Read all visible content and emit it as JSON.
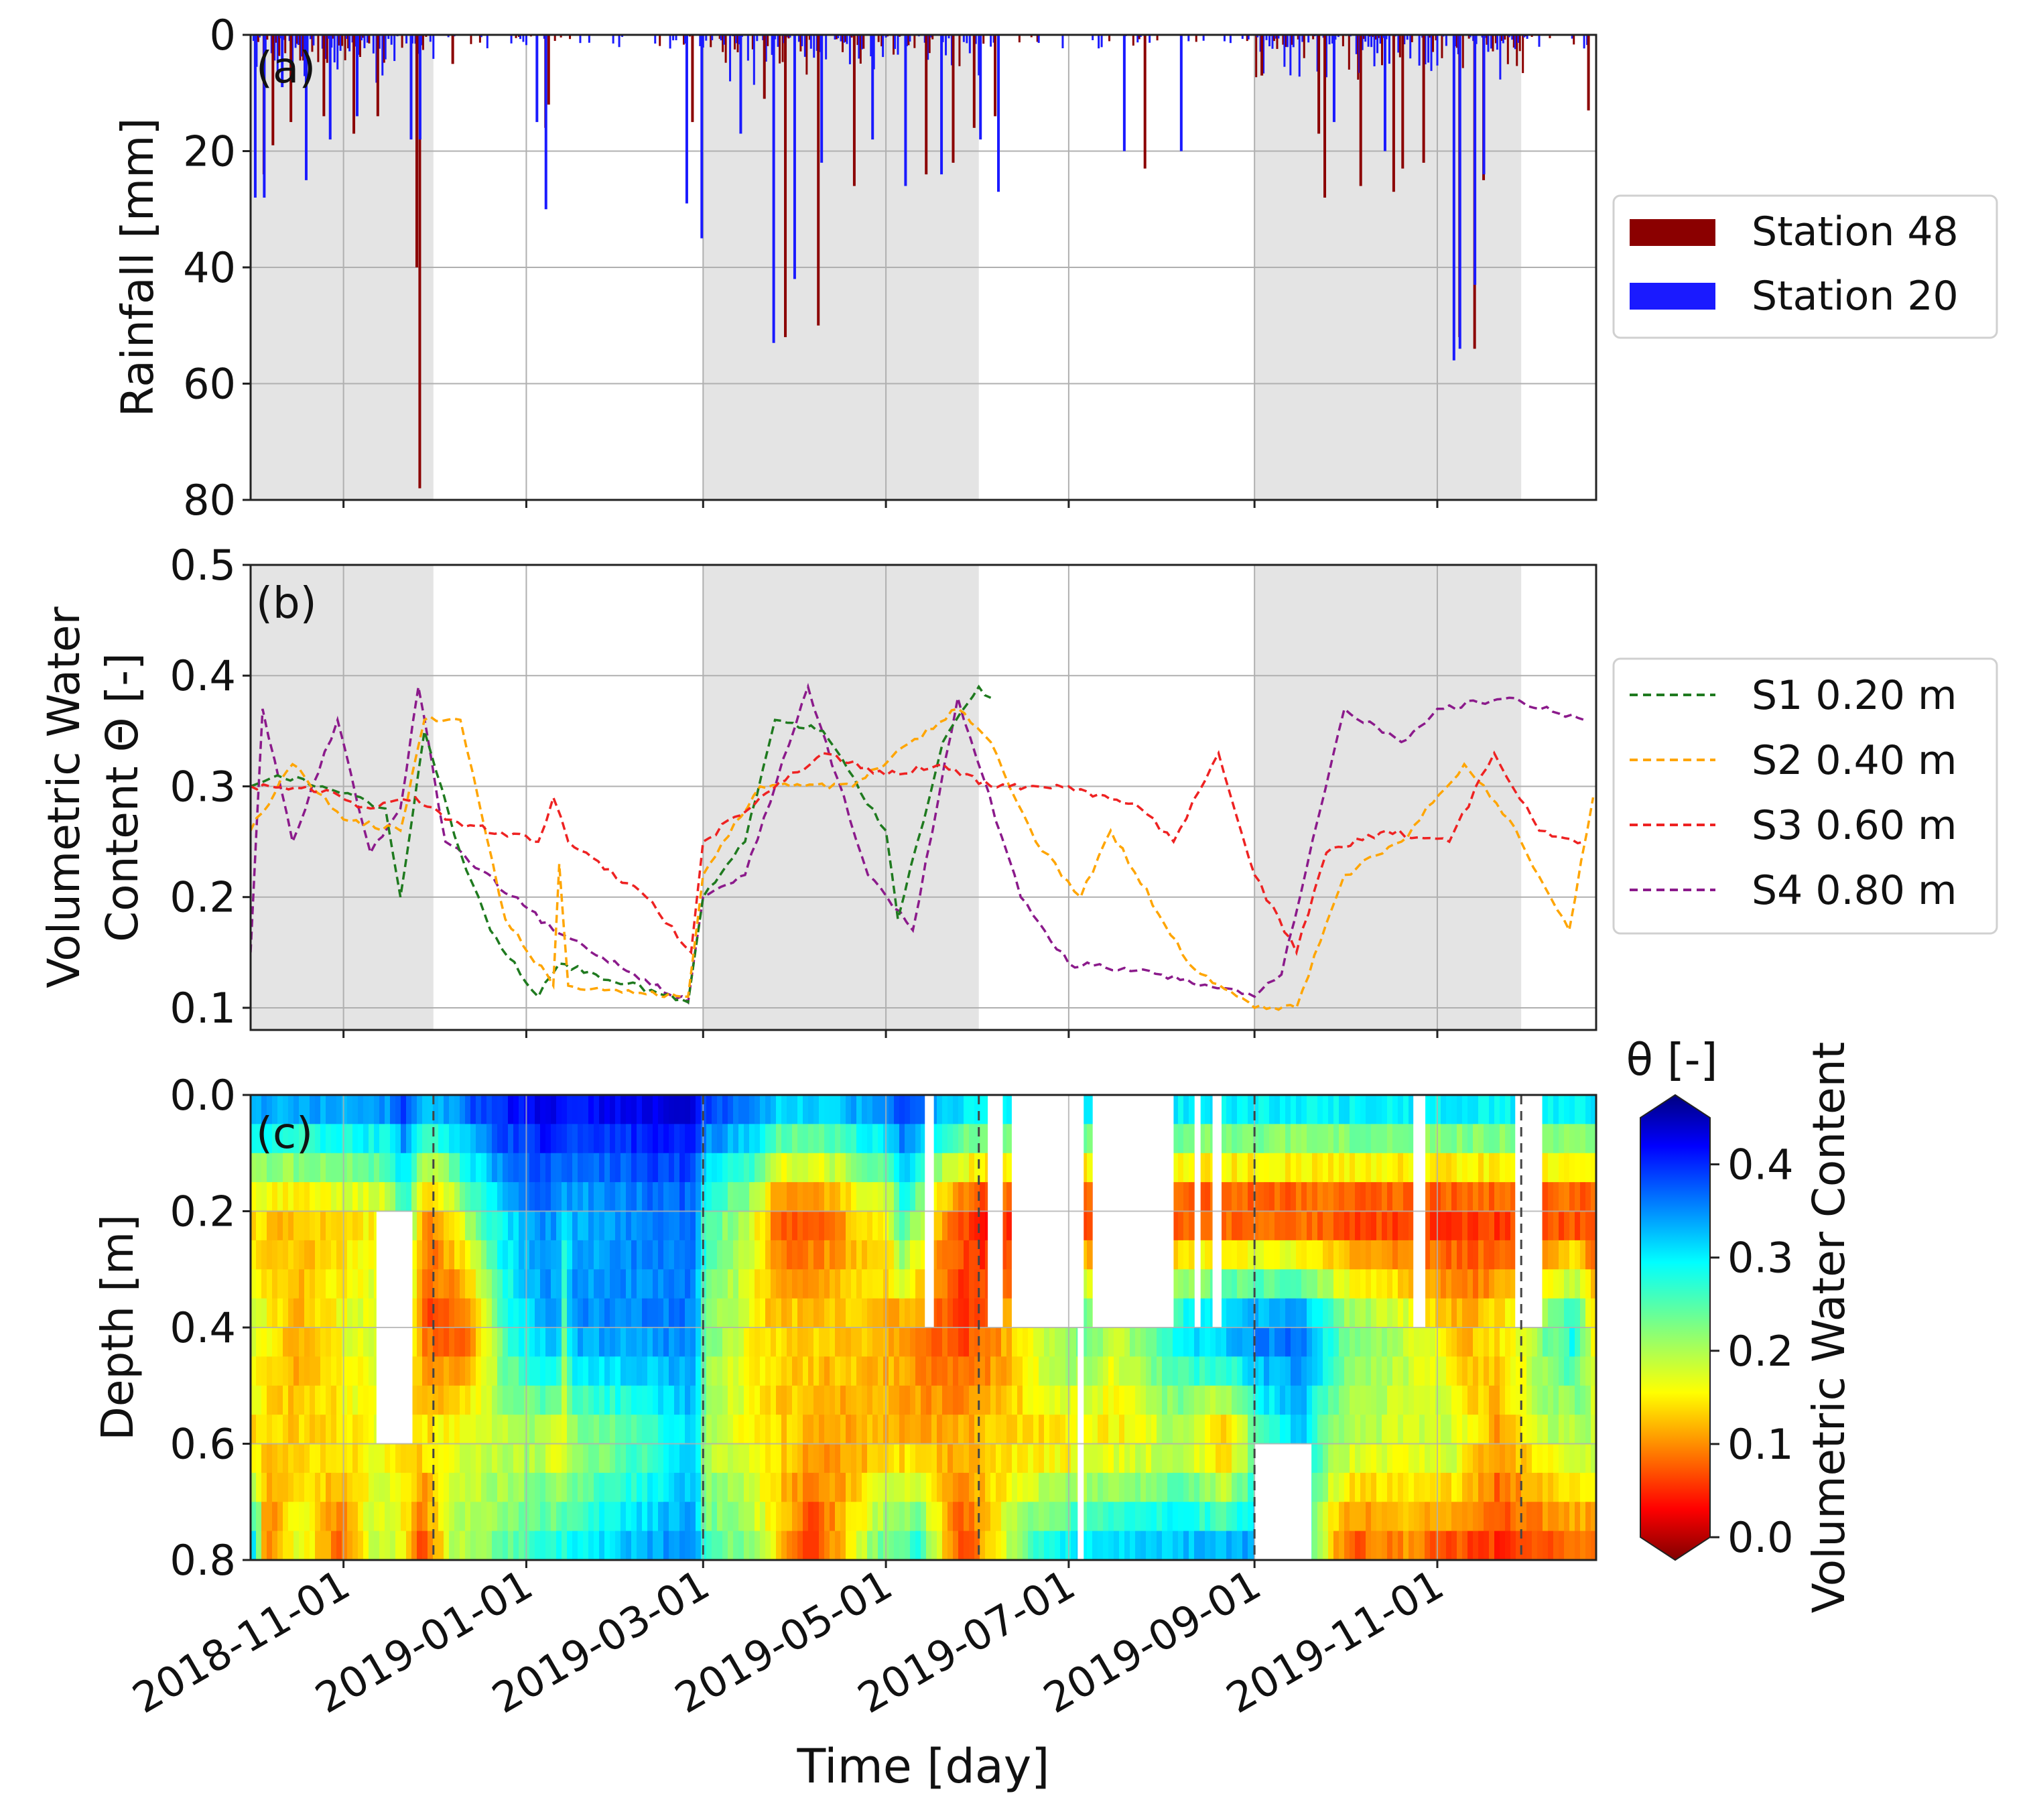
{
  "chart_data": [
    {
      "panel": "(a)",
      "type": "bar",
      "ylabel": "Rainfall [mm]",
      "ylim": [
        80,
        0
      ],
      "yticks": [
        0,
        20,
        40,
        60,
        80
      ],
      "xlim": [
        "2018-10-01",
        "2019-12-24"
      ],
      "x_ticks": [
        "2018-11-01",
        "2019-01-01",
        "2019-03-01",
        "2019-05-01",
        "2019-07-01",
        "2019-09-01",
        "2019-11-01"
      ],
      "shaded_periods": [
        [
          "2018-10-01",
          "2018-12-01"
        ],
        [
          "2019-03-01",
          "2019-06-01"
        ],
        [
          "2019-09-01",
          "2019-11-29"
        ]
      ],
      "legend": [
        "Station 48",
        "Station 20"
      ],
      "colors": {
        "Station 48": "#8b0000",
        "Station 20": "#1a1aff"
      },
      "series": [
        {
          "name": "Station 48",
          "peaks": [
            [
              "2018-10-05",
              24
            ],
            [
              "2018-10-08",
              19
            ],
            [
              "2018-10-14",
              15
            ],
            [
              "2018-10-25",
              14
            ],
            [
              "2018-11-04",
              17
            ],
            [
              "2018-11-12",
              14
            ],
            [
              "2018-11-25",
              40
            ],
            [
              "2018-11-26",
              78
            ],
            [
              "2018-12-07",
              5
            ],
            [
              "2019-01-07",
              16
            ],
            [
              "2019-01-08",
              12
            ],
            [
              "2019-02-25",
              15
            ],
            [
              "2019-03-21",
              11
            ],
            [
              "2019-03-28",
              52
            ],
            [
              "2019-04-08",
              50
            ],
            [
              "2019-04-20",
              26
            ],
            [
              "2019-05-14",
              24
            ],
            [
              "2019-05-23",
              22
            ],
            [
              "2019-05-30",
              16
            ],
            [
              "2019-06-06",
              14
            ],
            [
              "2019-07-26",
              23
            ],
            [
              "2019-09-03",
              7
            ],
            [
              "2019-09-22",
              17
            ],
            [
              "2019-09-24",
              28
            ],
            [
              "2019-10-06",
              26
            ],
            [
              "2019-10-17",
              27
            ],
            [
              "2019-10-20",
              23
            ],
            [
              "2019-10-27",
              22
            ],
            [
              "2019-11-08",
              52
            ],
            [
              "2019-11-13",
              54
            ],
            [
              "2019-11-16",
              25
            ],
            [
              "2019-12-21",
              13
            ]
          ]
        },
        {
          "name": "Station 20",
          "peaks": [
            [
              "2018-10-03",
              28
            ],
            [
              "2018-10-06",
              28
            ],
            [
              "2018-10-12",
              9
            ],
            [
              "2018-10-20",
              25
            ],
            [
              "2018-10-28",
              18
            ],
            [
              "2018-11-06",
              14
            ],
            [
              "2018-11-24",
              18
            ],
            [
              "2018-11-27",
              18
            ],
            [
              "2019-01-05",
              15
            ],
            [
              "2019-01-08",
              30
            ],
            [
              "2019-02-24",
              29
            ],
            [
              "2019-03-01",
              35
            ],
            [
              "2019-03-14",
              17
            ],
            [
              "2019-03-25",
              53
            ],
            [
              "2019-04-01",
              42
            ],
            [
              "2019-04-10",
              22
            ],
            [
              "2019-04-27",
              18
            ],
            [
              "2019-05-08",
              26
            ],
            [
              "2019-05-20",
              24
            ],
            [
              "2019-06-02",
              18
            ],
            [
              "2019-06-08",
              27
            ],
            [
              "2019-07-20",
              20
            ],
            [
              "2019-08-08",
              20
            ],
            [
              "2019-09-28",
              15
            ],
            [
              "2019-10-15",
              20
            ],
            [
              "2019-11-07",
              56
            ],
            [
              "2019-11-09",
              54
            ],
            [
              "2019-11-14",
              43
            ],
            [
              "2019-11-17",
              24
            ]
          ]
        }
      ]
    },
    {
      "panel": "(b)",
      "type": "line",
      "ylabel_line1": "Volumetric Water",
      "ylabel_line2": "Content Θ [-]",
      "ylim": [
        0.08,
        0.5
      ],
      "yticks": [
        0.1,
        0.2,
        0.3,
        0.4,
        0.5
      ],
      "ytick_labels": [
        "0.1",
        "0.2",
        "0.3",
        "0.4",
        "0.5"
      ],
      "legend": [
        "S1 0.20 m",
        "S2 0.40 m",
        "S3 0.60 m",
        "S4 0.80 m"
      ],
      "colors": {
        "S1 0.20 m": "#1f7a1f",
        "S2 0.40 m": "#ffa500",
        "S3 0.60 m": "#ee2222",
        "S4 0.80 m": "#8b1a8b"
      },
      "series": [
        {
          "name": "S1 0.20 m",
          "points": [
            [
              "2018-10-01",
              0.3
            ],
            [
              "2018-10-10",
              0.31
            ],
            [
              "2018-10-25",
              0.3
            ],
            [
              "2018-11-15",
              0.28
            ],
            [
              "2018-11-20",
              0.2
            ],
            [
              "2018-11-28",
              0.35
            ],
            [
              "2018-12-10",
              0.24
            ],
            [
              "2018-12-20",
              0.17
            ],
            [
              "2019-01-05",
              0.11
            ],
            [
              "2019-01-12",
              0.14
            ],
            [
              "2019-02-24",
              0.105
            ],
            [
              "2019-03-01",
              0.2
            ],
            [
              "2019-03-15",
              0.25
            ],
            [
              "2019-03-25",
              0.36
            ],
            [
              "2019-04-10",
              0.35
            ],
            [
              "2019-05-01",
              0.26
            ],
            [
              "2019-05-05",
              0.18
            ],
            [
              "2019-05-20",
              0.34
            ],
            [
              "2019-06-01",
              0.39
            ],
            [
              "2019-06-05",
              0.38
            ]
          ]
        },
        {
          "name": "S2 0.40 m",
          "points": [
            [
              "2018-10-01",
              0.26
            ],
            [
              "2018-10-15",
              0.32
            ],
            [
              "2018-11-01",
              0.27
            ],
            [
              "2018-11-20",
              0.26
            ],
            [
              "2018-11-28",
              0.36
            ],
            [
              "2018-12-10",
              0.36
            ],
            [
              "2018-12-25",
              0.18
            ],
            [
              "2019-01-10",
              0.12
            ],
            [
              "2019-01-12",
              0.23
            ],
            [
              "2019-01-15",
              0.12
            ],
            [
              "2019-02-24",
              0.11
            ],
            [
              "2019-03-01",
              0.22
            ],
            [
              "2019-03-20",
              0.3
            ],
            [
              "2019-04-20",
              0.3
            ],
            [
              "2019-05-25",
              0.37
            ],
            [
              "2019-06-05",
              0.34
            ],
            [
              "2019-06-20",
              0.25
            ],
            [
              "2019-07-05",
              0.2
            ],
            [
              "2019-07-15",
              0.26
            ],
            [
              "2019-08-10",
              0.14
            ],
            [
              "2019-09-01",
              0.1
            ],
            [
              "2019-09-15",
              0.1
            ],
            [
              "2019-10-01",
              0.22
            ],
            [
              "2019-10-20",
              0.25
            ],
            [
              "2019-11-10",
              0.32
            ],
            [
              "2019-11-25",
              0.27
            ],
            [
              "2019-12-15",
              0.17
            ],
            [
              "2019-12-23",
              0.29
            ]
          ]
        },
        {
          "name": "S3 0.60 m",
          "points": [
            [
              "2018-10-01",
              0.3
            ],
            [
              "2018-10-20",
              0.3
            ],
            [
              "2018-11-10",
              0.28
            ],
            [
              "2018-11-25",
              0.29
            ],
            [
              "2018-12-05",
              0.27
            ],
            [
              "2019-01-05",
              0.25
            ],
            [
              "2019-01-10",
              0.29
            ],
            [
              "2019-01-15",
              0.25
            ],
            [
              "2019-02-10",
              0.2
            ],
            [
              "2019-02-25",
              0.15
            ],
            [
              "2019-03-01",
              0.25
            ],
            [
              "2019-03-20",
              0.29
            ],
            [
              "2019-04-10",
              0.33
            ],
            [
              "2019-05-01",
              0.31
            ],
            [
              "2019-05-20",
              0.32
            ],
            [
              "2019-06-05",
              0.3
            ],
            [
              "2019-07-01",
              0.3
            ],
            [
              "2019-07-25",
              0.28
            ],
            [
              "2019-08-05",
              0.25
            ],
            [
              "2019-08-20",
              0.33
            ],
            [
              "2019-09-01",
              0.22
            ],
            [
              "2019-09-15",
              0.15
            ],
            [
              "2019-09-25",
              0.24
            ],
            [
              "2019-10-15",
              0.26
            ],
            [
              "2019-11-05",
              0.25
            ],
            [
              "2019-11-20",
              0.33
            ],
            [
              "2019-12-05",
              0.26
            ],
            [
              "2019-12-20",
              0.25
            ]
          ]
        },
        {
          "name": "S4 0.80 m",
          "points": [
            [
              "2018-10-01",
              0.15
            ],
            [
              "2018-10-05",
              0.37
            ],
            [
              "2018-10-15",
              0.25
            ],
            [
              "2018-10-30",
              0.36
            ],
            [
              "2018-11-10",
              0.24
            ],
            [
              "2018-11-20",
              0.28
            ],
            [
              "2018-11-26",
              0.39
            ],
            [
              "2018-12-05",
              0.25
            ],
            [
              "2019-01-10",
              0.17
            ],
            [
              "2019-02-24",
              0.105
            ],
            [
              "2019-03-01",
              0.2
            ],
            [
              "2019-03-15",
              0.22
            ],
            [
              "2019-04-05",
              0.39
            ],
            [
              "2019-04-25",
              0.22
            ],
            [
              "2019-05-10",
              0.17
            ],
            [
              "2019-05-25",
              0.38
            ],
            [
              "2019-06-15",
              0.2
            ],
            [
              "2019-07-01",
              0.14
            ],
            [
              "2019-08-01",
              0.13
            ],
            [
              "2019-09-01",
              0.11
            ],
            [
              "2019-09-10",
              0.13
            ],
            [
              "2019-10-01",
              0.37
            ],
            [
              "2019-10-20",
              0.34
            ],
            [
              "2019-11-01",
              0.37
            ],
            [
              "2019-11-25",
              0.38
            ],
            [
              "2019-12-20",
              0.36
            ]
          ]
        }
      ]
    },
    {
      "panel": "(c)",
      "type": "heatmap",
      "ylabel": "Depth [m]",
      "xlabel": "Time [day]",
      "ylim": [
        0.8,
        0.0
      ],
      "yticks": [
        0.0,
        0.2,
        0.4,
        0.6,
        0.8
      ],
      "ytick_labels": [
        "0.0",
        "0.2",
        "0.4",
        "0.6",
        "0.8"
      ],
      "colorbar": {
        "title": "θ [-]",
        "label": "Volumetric Water Content",
        "range": [
          0.0,
          0.45
        ],
        "ticks": [
          0.0,
          0.1,
          0.2,
          0.3,
          0.4
        ],
        "tick_labels": [
          "0.0",
          "0.1",
          "0.2",
          "0.3",
          "0.4"
        ],
        "colormap": "jet_r"
      },
      "dashed_verticals": [
        "2018-12-01",
        "2019-03-01",
        "2019-06-01",
        "2019-09-01",
        "2019-11-29"
      ]
    }
  ],
  "shared": {
    "x_tick_labels": [
      "2018-11-01",
      "2019-01-01",
      "2019-03-01",
      "2019-05-01",
      "2019-07-01",
      "2019-09-01",
      "2019-11-01"
    ],
    "xlabel": "Time [day]"
  }
}
